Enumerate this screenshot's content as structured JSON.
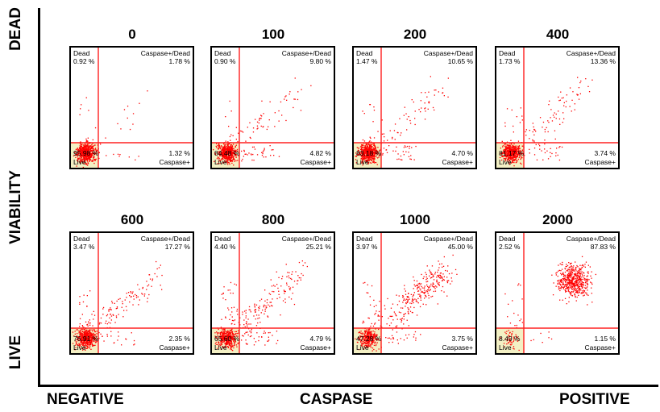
{
  "axes": {
    "y_top": "DEAD",
    "y_mid": "VIABILITY",
    "y_bottom": "LIVE",
    "x_left": "NEGATIVE",
    "x_mid": "CASPASE",
    "x_right": "POSITIVE"
  },
  "colors": {
    "dots": "#ff0000",
    "gate_lines": "#ff2020",
    "live_shade": "#f3f0c4",
    "frame": "#000000"
  },
  "quadrant_labels": {
    "dead": "Dead",
    "caspase_dead": "Caspase+/Dead",
    "live": "Live",
    "caspase": "Caspase+"
  },
  "chart_data": {
    "type": "scatter",
    "panels": [
      {
        "title": "0",
        "dead": "0.92 %",
        "caspase_dead": "1.78 %",
        "live": "95.98 %",
        "caspase": "1.32 %"
      },
      {
        "title": "100",
        "dead": "0.90 %",
        "caspase_dead": "9.80 %",
        "live": "84.48 %",
        "caspase": "4.82 %"
      },
      {
        "title": "200",
        "dead": "1.47 %",
        "caspase_dead": "10.65 %",
        "live": "83.18 %",
        "caspase": "4.70 %"
      },
      {
        "title": "400",
        "dead": "1.73 %",
        "caspase_dead": "13.36 %",
        "live": "81.17 %",
        "caspase": "3.74 %"
      },
      {
        "title": "600",
        "dead": "3.47 %",
        "caspase_dead": "17.27 %",
        "live": "76.91 %",
        "caspase": "2.35 %"
      },
      {
        "title": "800",
        "dead": "4.40 %",
        "caspase_dead": "25.21 %",
        "live": "65.60 %",
        "caspase": "4.79 %"
      },
      {
        "title": "1000",
        "dead": "3.97 %",
        "caspase_dead": "45.00 %",
        "live": "47.28 %",
        "caspase": "3.75 %"
      },
      {
        "title": "2000",
        "dead": "2.52 %",
        "caspase_dead": "87.83 %",
        "live": "8.49 %",
        "caspase": "1.15 %"
      }
    ]
  }
}
